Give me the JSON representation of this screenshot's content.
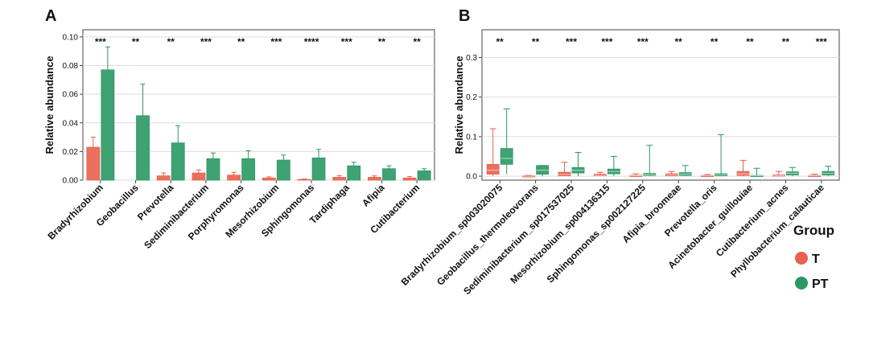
{
  "colors": {
    "T": "#e8604c",
    "PT": "#2a9862"
  },
  "legend": {
    "title": "Group",
    "items": [
      "T",
      "PT"
    ]
  },
  "chart_data": [
    {
      "panel": "A",
      "type": "bar",
      "ylabel": "Relative abundance",
      "ylim": [
        0,
        0.105
      ],
      "yticks": [
        "0.00",
        "0.02",
        "0.04",
        "0.06",
        "0.08",
        "0.10"
      ],
      "grid": true,
      "categories": [
        "Bradyrhizobium",
        "Geobacillus",
        "Prevotella",
        "Sediminibacterium",
        "Porphyromonas",
        "Mesorhizobium",
        "Sphingomonas",
        "Tardiphaga",
        "Afipia",
        "Cutibacterium"
      ],
      "significance": [
        "***",
        "**",
        "**",
        "***",
        "**",
        "***",
        "****",
        "***",
        "**",
        "**"
      ],
      "series": [
        {
          "name": "T",
          "values": [
            0.023,
            0.0,
            0.003,
            0.005,
            0.0035,
            0.0015,
            0.0005,
            0.002,
            0.002,
            0.0015
          ],
          "errors": [
            0.007,
            0.0,
            0.002,
            0.002,
            0.002,
            0.0008,
            0.0003,
            0.0012,
            0.001,
            0.001
          ]
        },
        {
          "name": "PT",
          "values": [
            0.077,
            0.045,
            0.026,
            0.015,
            0.015,
            0.014,
            0.0155,
            0.01,
            0.008,
            0.0065
          ],
          "errors": [
            0.016,
            0.022,
            0.012,
            0.004,
            0.0055,
            0.0035,
            0.006,
            0.0025,
            0.002,
            0.0015
          ]
        }
      ]
    },
    {
      "panel": "B",
      "type": "box",
      "ylabel": "Relative abundance",
      "ylim": [
        -0.01,
        0.37
      ],
      "yticks": [
        "0.0",
        "0.1",
        "0.2",
        "0.3"
      ],
      "ytickvalues": [
        0,
        0.1,
        0.2,
        0.3
      ],
      "grid": true,
      "categories": [
        "Bradyrhizobium_sp003020075",
        "Geobacillus_thermoleovorans",
        "Sediminibacterium_sp017537025",
        "Mesorhizobium_sp004136315",
        "Sphingomonas_sp002127225",
        "Afipia_broomeae",
        "Prevotella_oris",
        "Acinetobacter_guillouiae",
        "Cutibacterium_acnes",
        "Phyllobacterium_calauticae"
      ],
      "significance": [
        "**",
        "**",
        "***",
        "***",
        "***",
        "**",
        "**",
        "**",
        "**",
        "***"
      ],
      "series": [
        {
          "name": "T",
          "boxes": [
            [
              0.0,
              0.005,
              0.015,
              0.03,
              0.12
            ],
            [
              0.0,
              0.0,
              0.0,
              0.001,
              0.002
            ],
            [
              0.0,
              0.001,
              0.004,
              0.01,
              0.035
            ],
            [
              0.0,
              0.001,
              0.002,
              0.005,
              0.01
            ],
            [
              0.0,
              0.0,
              0.001,
              0.002,
              0.006
            ],
            [
              0.0,
              0.001,
              0.003,
              0.006,
              0.012
            ],
            [
              0.0,
              0.0,
              0.001,
              0.002,
              0.004
            ],
            [
              0.0,
              0.002,
              0.006,
              0.012,
              0.04
            ],
            [
              0.0,
              0.0,
              0.001,
              0.003,
              0.012
            ],
            [
              0.0,
              0.0,
              0.001,
              0.002,
              0.005
            ]
          ]
        },
        {
          "name": "PT",
          "boxes": [
            [
              0.005,
              0.03,
              0.045,
              0.07,
              0.17
            ],
            [
              0.0,
              0.005,
              0.015,
              0.027,
              0.027
            ],
            [
              0.0,
              0.008,
              0.015,
              0.022,
              0.06
            ],
            [
              0.0,
              0.006,
              0.012,
              0.018,
              0.05
            ],
            [
              0.0,
              0.002,
              0.004,
              0.007,
              0.078
            ],
            [
              0.0,
              0.002,
              0.005,
              0.009,
              0.027
            ],
            [
              0.0,
              0.001,
              0.003,
              0.006,
              0.105
            ],
            [
              0.0,
              0.0,
              0.001,
              0.002,
              0.02
            ],
            [
              0.0,
              0.003,
              0.007,
              0.011,
              0.022
            ],
            [
              0.0,
              0.003,
              0.007,
              0.012,
              0.025
            ]
          ]
        }
      ]
    }
  ]
}
